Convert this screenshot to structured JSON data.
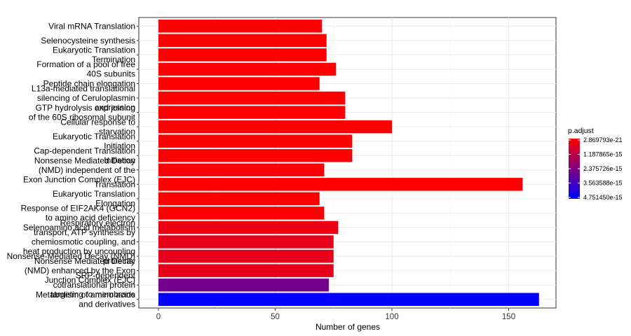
{
  "chart_data": {
    "type": "bar",
    "orientation": "horizontal",
    "xlabel": "Number of genes",
    "ylabel": "",
    "xlim": [
      0,
      170
    ],
    "xticks": [
      0,
      50,
      100,
      150
    ],
    "grid": true,
    "legend_position": "right",
    "legend": {
      "title": "p.adjust",
      "ticks": [
        "2.869793e-21",
        "1.187865e-15",
        "2.375726e-15",
        "3.563588e-15",
        "4.751450e-15"
      ],
      "color_low": "#ff0000",
      "color_high": "#0000ff"
    },
    "categories": [
      [
        "Viral mRNA Translation"
      ],
      [
        "Selenocysteine synthesis"
      ],
      [
        "Eukaryotic Translation",
        "Termination"
      ],
      [
        "Formation of a pool of free",
        "40S subunits"
      ],
      [
        "Peptide chain elongation"
      ],
      [
        "L13a-mediated translational",
        "silencing of Ceruloplasmin",
        "expression"
      ],
      [
        "GTP hydrolysis and joining",
        "of the 60S ribosomal subunit"
      ],
      [
        "Cellular response to",
        "starvation"
      ],
      [
        "Eukaryotic Translation",
        "Initiation"
      ],
      [
        "Cap-dependent Translation",
        "Initiation"
      ],
      [
        "Nonsense Mediated Decay",
        "(NMD) independent of the",
        "Exon Junction Complex (EJC)"
      ],
      [
        "Translation"
      ],
      [
        "Eukaryotic Translation",
        "Elongation"
      ],
      [
        "Response of EIF2AK4 (GCN2)",
        "to amino acid deficiency"
      ],
      [
        "Selenoamino acid metabolism"
      ],
      [
        "Respiratory electron",
        "transport, ATP synthesis by",
        "chemiosmotic coupling, and",
        "heat production by uncoupling",
        "proteins."
      ],
      [
        "Nonsense-Mediated Decay (NMD)"
      ],
      [
        "Nonsense Mediated Decay",
        "(NMD) enhanced by the Exon",
        "Junction Complex (EJC)"
      ],
      [
        "SRP-dependent",
        "cotranslational protein",
        "targeting to membrane"
      ],
      [
        "Metabolism of amino acids",
        "and derivatives"
      ]
    ],
    "values": [
      70,
      72,
      72,
      76,
      69,
      80,
      80,
      100,
      83,
      83,
      71,
      156,
      69,
      71,
      77,
      75,
      75,
      75,
      73,
      163
    ],
    "p_adjust_fraction": [
      0,
      0,
      0,
      0,
      0,
      0,
      0,
      0,
      0,
      0,
      0,
      0,
      0,
      0,
      0.08,
      0.1,
      0.1,
      0.1,
      0.55,
      1.0
    ]
  }
}
